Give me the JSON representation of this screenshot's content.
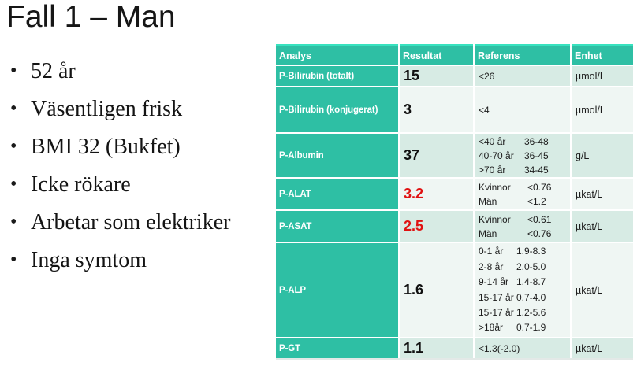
{
  "slide": {
    "title": "Fall 1 – Man",
    "bullets": [
      "52 år",
      "Väsentligen frisk",
      "BMI 32 (Bukfet)",
      "Icke rökare",
      "Arbetar som elektriker",
      "Inga symtom"
    ]
  },
  "table": {
    "headers": {
      "analys": "Analys",
      "resultat": "Resultat",
      "referens": "Referens",
      "enhet": "Enhet"
    },
    "rows": [
      {
        "analys": "P-Bilirubin (totalt)",
        "resultat": "15",
        "abnormal": false,
        "referens": [
          {
            "label": "<26",
            "value": ""
          }
        ],
        "enhet": "µmol/L"
      },
      {
        "analys": "P-Bilirubin (konjugerat)",
        "resultat": "3",
        "abnormal": false,
        "referens": [
          {
            "label": "<4",
            "value": ""
          }
        ],
        "enhet": "µmol/L"
      },
      {
        "analys": "P-Albumin",
        "resultat": "37",
        "abnormal": false,
        "referens": [
          {
            "label": "<40 år",
            "value": "36-48"
          },
          {
            "label": "40-70 år",
            "value": "36-45"
          },
          {
            "label": ">70 år",
            "value": "34-45"
          }
        ],
        "enhet": "g/L"
      },
      {
        "analys": "P-ALAT",
        "resultat": "3.2",
        "abnormal": true,
        "referens": [
          {
            "label": "Kvinnor",
            "value": "<0.76"
          },
          {
            "label": "Män",
            "value": "<1.2"
          }
        ],
        "enhet": "µkat/L"
      },
      {
        "analys": "P-ASAT",
        "resultat": "2.5",
        "abnormal": true,
        "referens": [
          {
            "label": "Kvinnor",
            "value": "<0.61"
          },
          {
            "label": "Män",
            "value": "<0.76"
          }
        ],
        "enhet": "µkat/L"
      },
      {
        "analys": "P-ALP",
        "resultat": "1.6",
        "abnormal": false,
        "referens": [
          {
            "label": "0-1 år",
            "value": "1.9-8.3"
          },
          {
            "label": "2-8 år",
            "value": "2.0-5.0"
          },
          {
            "label": "9-14 år",
            "value": "1.4-8.7"
          },
          {
            "label": "15-17 år",
            "value": "0.7-4.0"
          },
          {
            "label": "15-17 år",
            "value": "1.2-5.6"
          },
          {
            "label": ">18år",
            "value": "0.7-1.9"
          }
        ],
        "enhet": "µkat/L"
      },
      {
        "analys": "P-GT",
        "resultat": "1.1",
        "abnormal": false,
        "referens": [
          {
            "label": "<1.3(-2.0)",
            "value": ""
          }
        ],
        "enhet": "µkat/L"
      }
    ]
  },
  "colors": {
    "header_teal": "#2ebfa4",
    "row_band_dark": "#d7ebe4",
    "row_band_light": "#eff6f3",
    "abnormal_red": "#e01111"
  }
}
